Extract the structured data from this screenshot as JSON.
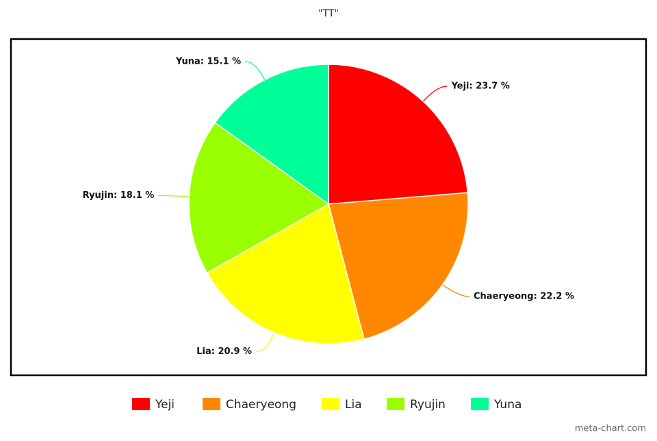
{
  "chart_data": {
    "type": "pie",
    "title": "\"TT\"",
    "categories": [
      "Yeji",
      "Chaeryeong",
      "Lia",
      "Ryujin",
      "Yuna"
    ],
    "values": [
      23.7,
      22.2,
      20.9,
      18.1,
      15.1
    ],
    "value_labels": [
      "Yeji: 23.7 %",
      "Chaeryeong: 22.2 %",
      "Lia: 20.9 %",
      "Ryujin: 18.1 %",
      "Yuna: 15.1 %"
    ],
    "colors": [
      "#ff0000",
      "#ff8800",
      "#ffff00",
      "#99ff00",
      "#00ff99"
    ],
    "watermark": "meta-chart.com"
  }
}
